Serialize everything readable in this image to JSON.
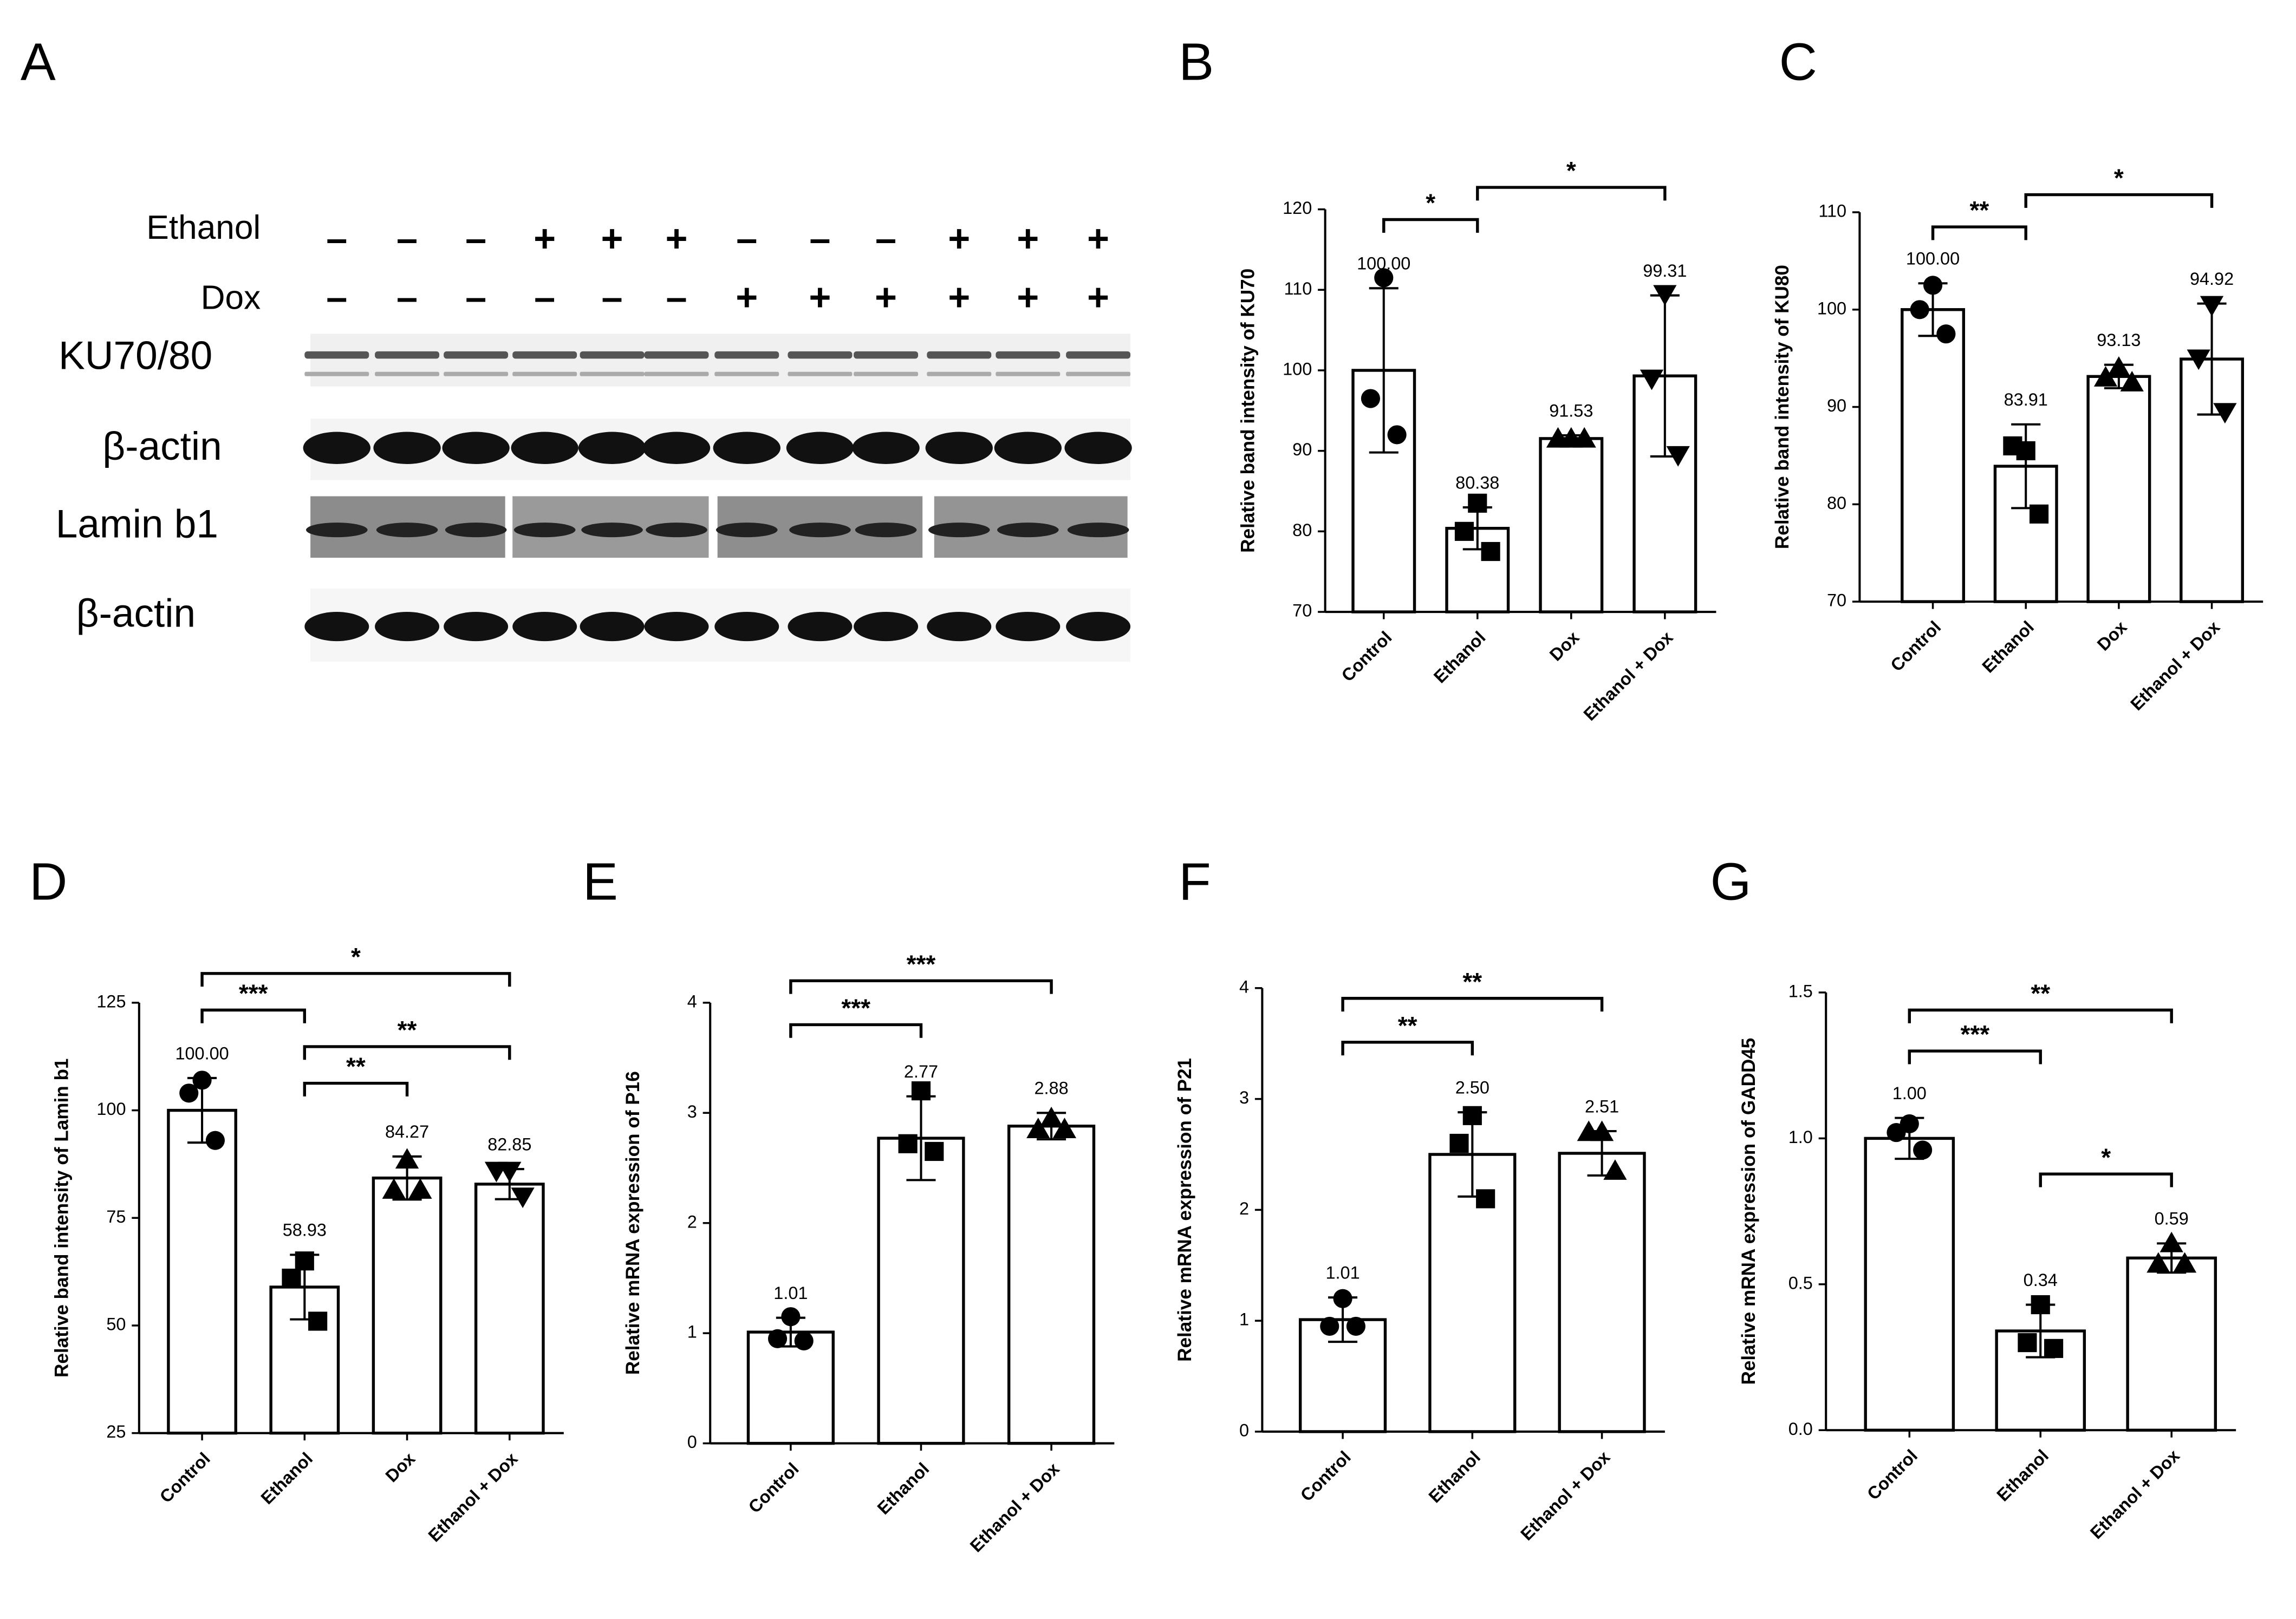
{
  "panel_a": {
    "label": "A",
    "row_labels": [
      "Ethanol",
      "Dox"
    ],
    "ethanol": [
      "–",
      "–",
      "–",
      "+",
      "+",
      "+",
      "–",
      "–",
      "–",
      "+",
      "+",
      "+"
    ],
    "dox": [
      "–",
      "–",
      "–",
      "–",
      "–",
      "–",
      "+",
      "+",
      "+",
      "+",
      "+",
      "+"
    ],
    "blot_labels": [
      "KU70/80",
      "β-actin",
      "Lamin b1",
      "β-actin"
    ]
  },
  "chart_data": [
    {
      "type": "bar",
      "panel": "B",
      "y_label": "Relative band intensity of KU70",
      "categories": [
        "Control",
        "Ethanol",
        "Dox",
        "Ethanol + Dox"
      ],
      "values": [
        100,
        80.38,
        91.53,
        99.31
      ],
      "value_labels": [
        "100.00",
        "80.38",
        "91.53",
        "99.31"
      ],
      "errors": [
        10.2,
        2.6,
        0.4,
        10
      ],
      "points": [
        [
          111.5,
          96.5,
          92
        ],
        [
          83.5,
          80,
          77.5
        ],
        [
          91.5,
          91.5,
          91.5
        ],
        [
          109.5,
          99,
          89.5
        ]
      ],
      "markers": [
        "circle",
        "square",
        "triangle-up",
        "triangle-down"
      ],
      "ylim": [
        70,
        120
      ],
      "yticks": [
        70,
        80,
        90,
        100,
        110,
        120
      ],
      "significance": [
        {
          "from": 0,
          "to": 1,
          "label": "*"
        },
        {
          "from": 1,
          "to": 3,
          "label": "*"
        }
      ],
      "bar_color": "#ffffff",
      "edge_color": "#000000"
    },
    {
      "type": "bar",
      "panel": "C",
      "y_label": "Relative band intensity of KU80",
      "categories": [
        "Control",
        "Ethanol",
        "Dox",
        "Ethanol + Dox"
      ],
      "values": [
        100,
        83.91,
        93.13,
        94.92
      ],
      "value_labels": [
        "100.00",
        "83.91",
        "93.13",
        "94.92"
      ],
      "errors": [
        2.7,
        4.3,
        1.2,
        5.7
      ],
      "points": [
        [
          102.5,
          100,
          97.5
        ],
        [
          85.5,
          86,
          79
        ],
        [
          94,
          93,
          92.5
        ],
        [
          100.5,
          95,
          89.5
        ]
      ],
      "markers": [
        "circle",
        "square",
        "triangle-up",
        "triangle-down"
      ],
      "ylim": [
        70,
        110
      ],
      "yticks": [
        70,
        80,
        90,
        100,
        110
      ],
      "significance": [
        {
          "from": 0,
          "to": 1,
          "label": "**"
        },
        {
          "from": 1,
          "to": 3,
          "label": "*"
        }
      ],
      "bar_color": "#ffffff",
      "edge_color": "#000000"
    },
    {
      "type": "bar",
      "panel": "D",
      "y_label": "Relative band intensity of Lamin b1",
      "categories": [
        "Control",
        "Ethanol",
        "Dox",
        "Ethanol + Dox"
      ],
      "values": [
        100,
        58.93,
        84.27,
        82.85
      ],
      "value_labels": [
        "100.00",
        "58.93",
        "84.27",
        "82.85"
      ],
      "errors": [
        7.5,
        7.5,
        5,
        3.5
      ],
      "points": [
        [
          107,
          104,
          93
        ],
        [
          65,
          61,
          51
        ],
        [
          88.5,
          81.5,
          81.5
        ],
        [
          86,
          86,
          80
        ]
      ],
      "markers": [
        "circle",
        "square",
        "triangle-up",
        "triangle-down"
      ],
      "ylim": [
        25,
        125
      ],
      "yticks": [
        25,
        50,
        75,
        100,
        125
      ],
      "significance": [
        {
          "from": 1,
          "to": 2,
          "label": "**"
        },
        {
          "from": 1,
          "to": 3,
          "label": "**"
        },
        {
          "from": 0,
          "to": 1,
          "label": "***"
        },
        {
          "from": 0,
          "to": 3,
          "label": "*"
        }
      ],
      "bar_color": "#ffffff",
      "edge_color": "#000000"
    },
    {
      "type": "bar",
      "panel": "E",
      "y_label": "Relative mRNA expression of P16",
      "categories": [
        "Control",
        "Ethanol",
        "Ethanol + Dox"
      ],
      "values": [
        1.01,
        2.77,
        2.88
      ],
      "value_labels": [
        "1.01",
        "2.77",
        "2.88"
      ],
      "errors": [
        0.13,
        0.38,
        0.12
      ],
      "points": [
        [
          1.15,
          0.95,
          0.93
        ],
        [
          3.2,
          2.72,
          2.65
        ],
        [
          2.95,
          2.85,
          2.85
        ]
      ],
      "markers": [
        "circle",
        "square",
        "triangle-up"
      ],
      "ylim": [
        0,
        4
      ],
      "yticks": [
        0,
        1,
        2,
        3,
        4
      ],
      "significance": [
        {
          "from": 0,
          "to": 1,
          "label": "***"
        },
        {
          "from": 0,
          "to": 2,
          "label": "***"
        }
      ],
      "bar_color": "#ffffff",
      "edge_color": "#000000"
    },
    {
      "type": "bar",
      "panel": "F",
      "y_label": "Relative mRNA expression of P21",
      "categories": [
        "Control",
        "Ethanol",
        "Ethanol + Dox"
      ],
      "values": [
        1.01,
        2.5,
        2.51
      ],
      "value_labels": [
        "1.01",
        "2.50",
        "2.51"
      ],
      "errors": [
        0.2,
        0.38,
        0.2
      ],
      "points": [
        [
          1.2,
          0.95,
          0.95
        ],
        [
          2.85,
          2.6,
          2.1
        ],
        [
          2.7,
          2.7,
          2.35
        ]
      ],
      "markers": [
        "circle",
        "square",
        "triangle-up"
      ],
      "ylim": [
        0,
        4
      ],
      "yticks": [
        0,
        1,
        2,
        3,
        4
      ],
      "significance": [
        {
          "from": 0,
          "to": 1,
          "label": "**"
        },
        {
          "from": 0,
          "to": 2,
          "label": "**"
        }
      ],
      "bar_color": "#ffffff",
      "edge_color": "#000000"
    },
    {
      "type": "bar",
      "panel": "G",
      "y_label": "Relative mRNA expression of GADD45",
      "categories": [
        "Control",
        "Ethanol",
        "Ethanol + Dox"
      ],
      "values": [
        1,
        0.34,
        0.59
      ],
      "value_labels": [
        "1.00",
        "0.34",
        "0.59"
      ],
      "errors": [
        0.07,
        0.09,
        0.05
      ],
      "points": [
        [
          1.05,
          1.02,
          0.96
        ],
        [
          0.43,
          0.3,
          0.28
        ],
        [
          0.64,
          0.57,
          0.57
        ]
      ],
      "markers": [
        "circle",
        "square",
        "triangle-up"
      ],
      "ylim": [
        0,
        1.5
      ],
      "yticks": [
        {
          "value": 0,
          "label": "0.0"
        },
        {
          "value": 0.5,
          "label": "0.5"
        },
        {
          "value": 1,
          "label": "1.0"
        },
        {
          "value": 1.5,
          "label": "1.5"
        }
      ],
      "significance": [
        {
          "from": 1,
          "to": 2,
          "label": "*"
        },
        {
          "from": 0,
          "to": 1,
          "label": "***"
        },
        {
          "from": 0,
          "to": 2,
          "label": "**"
        }
      ],
      "bar_color": "#ffffff",
      "edge_color": "#000000"
    }
  ]
}
